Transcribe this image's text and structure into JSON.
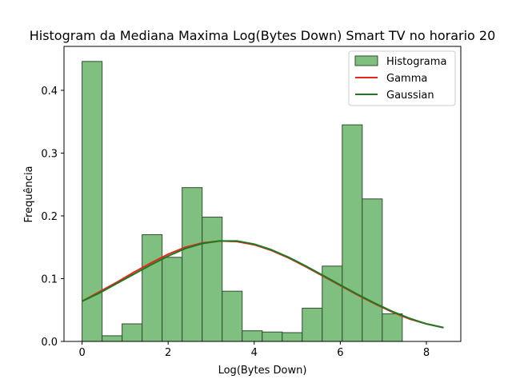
{
  "chart_data": {
    "type": "bar",
    "title": "Histogram da Mediana Maxima Log(Bytes Down) Smart TV no horario 20",
    "xlabel": "Log(Bytes Down)",
    "ylabel": "Frequência",
    "xlim": [
      -0.42,
      8.8
    ],
    "ylim": [
      0,
      0.47
    ],
    "xticks": [
      0,
      2,
      4,
      6,
      8
    ],
    "xtick_labels": [
      "0",
      "2",
      "4",
      "6",
      "8"
    ],
    "yticks": [
      0.0,
      0.1,
      0.2,
      0.3,
      0.4
    ],
    "ytick_labels": [
      "0.0",
      "0.1",
      "0.2",
      "0.3",
      "0.4"
    ],
    "grid": false,
    "legend_position": "top-right",
    "histogram": {
      "name": "Histograma",
      "color": "#7fbf7f",
      "edge_color": "#2f4f2f",
      "bin_edges": [
        0.0,
        0.465,
        0.93,
        1.395,
        1.86,
        2.325,
        2.79,
        3.255,
        3.72,
        4.185,
        4.65,
        5.115,
        5.58,
        6.045,
        6.51,
        6.975,
        7.44
      ],
      "values": [
        0.446,
        0.009,
        0.028,
        0.17,
        0.134,
        0.245,
        0.198,
        0.08,
        0.017,
        0.015,
        0.014,
        0.053,
        0.12,
        0.345,
        0.227,
        0.044
      ]
    },
    "series": [
      {
        "name": "Gamma",
        "color": "#e8251f",
        "x": [
          0.0,
          0.4,
          0.8,
          1.2,
          1.6,
          2.0,
          2.4,
          2.8,
          3.2,
          3.6,
          4.0,
          4.4,
          4.8,
          5.2,
          5.6,
          6.0,
          6.4,
          6.8,
          7.2,
          7.6,
          8.0,
          8.4
        ],
        "y": [
          0.064,
          0.079,
          0.094,
          0.11,
          0.125,
          0.139,
          0.15,
          0.157,
          0.16,
          0.159,
          0.154,
          0.145,
          0.133,
          0.119,
          0.104,
          0.089,
          0.074,
          0.06,
          0.047,
          0.036,
          0.028,
          0.022
        ]
      },
      {
        "name": "Gaussian",
        "color": "#1f7a1f",
        "x": [
          0.0,
          0.4,
          0.8,
          1.2,
          1.6,
          2.0,
          2.4,
          2.8,
          3.2,
          3.6,
          4.0,
          4.4,
          4.8,
          5.2,
          5.6,
          6.0,
          6.4,
          6.8,
          7.2,
          7.6,
          8.0,
          8.4
        ],
        "y": [
          0.064,
          0.077,
          0.092,
          0.107,
          0.122,
          0.136,
          0.148,
          0.156,
          0.16,
          0.16,
          0.155,
          0.146,
          0.134,
          0.12,
          0.105,
          0.09,
          0.075,
          0.061,
          0.048,
          0.037,
          0.028,
          0.022
        ]
      }
    ]
  }
}
